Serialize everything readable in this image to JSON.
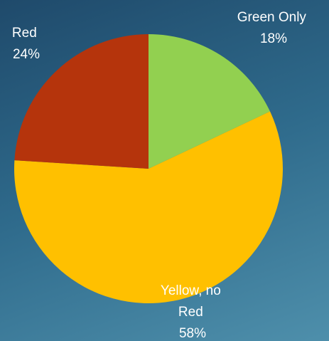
{
  "chart_data": {
    "type": "pie",
    "title": "",
    "slices": [
      {
        "label_lines": [
          "Green Only"
        ],
        "pct_label": "18%",
        "value": 18,
        "color": "#92d050"
      },
      {
        "label_lines": [
          "Yellow, no",
          "Red"
        ],
        "pct_label": "58%",
        "value": 58,
        "color": "#ffc000"
      },
      {
        "label_lines": [
          "Red"
        ],
        "pct_label": "24%",
        "value": 24,
        "color": "#b5340c"
      }
    ],
    "start_angle_deg": 0,
    "direction": "clockwise",
    "legend": "none"
  }
}
